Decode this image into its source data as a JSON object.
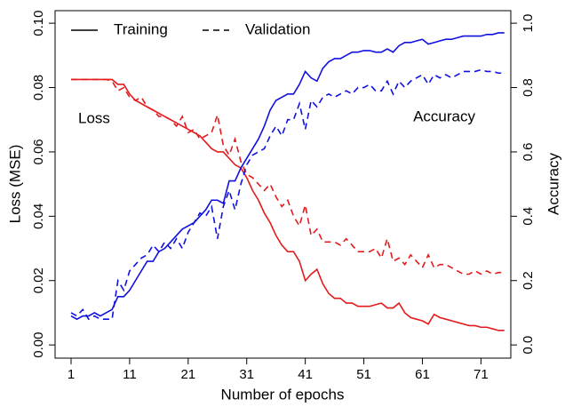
{
  "chart_data": {
    "type": "line",
    "xlabel": "Number of epochs",
    "ylabel": "Loss (MSE)",
    "y2label": "Accuracy",
    "x": [
      1,
      2,
      3,
      4,
      5,
      6,
      7,
      8,
      9,
      10,
      11,
      12,
      13,
      14,
      15,
      16,
      17,
      18,
      19,
      20,
      21,
      22,
      23,
      24,
      25,
      26,
      27,
      28,
      29,
      30,
      31,
      32,
      33,
      34,
      35,
      36,
      37,
      38,
      39,
      40,
      41,
      42,
      43,
      44,
      45,
      46,
      47,
      48,
      49,
      50,
      51,
      52,
      53,
      54,
      55,
      56,
      57,
      58,
      59,
      60,
      61,
      62,
      63,
      64,
      65,
      66,
      67,
      68,
      69,
      70,
      71,
      72,
      73,
      74,
      75
    ],
    "xlim": [
      -1.73,
      76.1
    ],
    "xticks": [
      1,
      11,
      21,
      31,
      41,
      51,
      61,
      71
    ],
    "ylim": [
      -0.0041,
      0.1039
    ],
    "yticks": [
      {
        "value": 0,
        "label": "0.00"
      },
      {
        "value": 0.02,
        "label": "0.02"
      },
      {
        "value": 0.04,
        "label": "0.04"
      },
      {
        "value": 0.06,
        "label": "0.06"
      },
      {
        "value": 0.08,
        "label": "0.08"
      },
      {
        "value": 0.1,
        "label": "0.10"
      }
    ],
    "y2lim": [
      -0.041,
      1.039
    ],
    "y2ticks": [
      {
        "value": 0,
        "label": "0.0"
      },
      0.2,
      0.4,
      0.6,
      0.8,
      {
        "value": 1,
        "label": "1.0"
      }
    ],
    "legend": [
      {
        "label": "Training",
        "dash": "solid"
      },
      {
        "label": "Validation",
        "dash": "dashed"
      }
    ],
    "annotations": [
      {
        "text": "Loss",
        "color": "#e41a1c"
      },
      {
        "text": "Accuracy",
        "color": "#1010e0"
      }
    ],
    "series": [
      {
        "color": "#e41a1c",
        "dash": "solid",
        "axis": "y",
        "values": [
          0.0825,
          0.0825,
          0.0825,
          0.0825,
          0.0825,
          0.0825,
          0.0825,
          0.0825,
          0.081,
          0.081,
          0.078,
          0.076,
          0.075,
          0.074,
          0.073,
          0.072,
          0.071,
          0.07,
          0.069,
          0.068,
          0.067,
          0.066,
          0.065,
          0.063,
          0.061,
          0.06,
          0.06,
          0.058,
          0.056,
          0.055,
          0.052,
          0.048,
          0.045,
          0.041,
          0.038,
          0.034,
          0.031,
          0.029,
          0.029,
          0.026,
          0.02,
          0.022,
          0.0235,
          0.019,
          0.016,
          0.0145,
          0.0145,
          0.013,
          0.013,
          0.012,
          0.012,
          0.012,
          0.0125,
          0.013,
          0.0115,
          0.0115,
          0.013,
          0.01,
          0.0085,
          0.008,
          0.0075,
          0.0065,
          0.0095,
          0.0085,
          0.008,
          0.0075,
          0.007,
          0.0065,
          0.006,
          0.006,
          0.0055,
          0.0055,
          0.005,
          0.0045,
          0.0045
        ]
      },
      {
        "color": "#e41a1c",
        "dash": "dashed",
        "axis": "y",
        "values": [
          0.0825,
          0.0825,
          0.0825,
          0.0825,
          0.0825,
          0.0825,
          0.0825,
          0.082,
          0.079,
          0.08,
          0.077,
          0.076,
          0.077,
          0.074,
          0.073,
          0.071,
          0.071,
          0.07,
          0.068,
          0.071,
          0.066,
          0.067,
          0.064,
          0.065,
          0.066,
          0.0715,
          0.062,
          0.059,
          0.064,
          0.057,
          0.053,
          0.052,
          0.05,
          0.048,
          0.05,
          0.046,
          0.043,
          0.045,
          0.04,
          0.037,
          0.0435,
          0.034,
          0.036,
          0.032,
          0.032,
          0.032,
          0.031,
          0.033,
          0.031,
          0.029,
          0.029,
          0.029,
          0.03,
          0.027,
          0.033,
          0.026,
          0.027,
          0.025,
          0.028,
          0.026,
          0.024,
          0.028,
          0.024,
          0.025,
          0.025,
          0.024,
          0.023,
          0.022,
          0.022,
          0.023,
          0.022,
          0.023,
          0.022,
          0.0225,
          0.0225
        ]
      },
      {
        "color": "#1010e0",
        "dash": "solid",
        "axis": "y2",
        "values": [
          0.09,
          0.08,
          0.09,
          0.09,
          0.1,
          0.09,
          0.1,
          0.11,
          0.15,
          0.15,
          0.17,
          0.2,
          0.23,
          0.26,
          0.26,
          0.29,
          0.3,
          0.32,
          0.34,
          0.36,
          0.37,
          0.38,
          0.4,
          0.42,
          0.45,
          0.45,
          0.44,
          0.51,
          0.51,
          0.55,
          0.58,
          0.61,
          0.64,
          0.68,
          0.73,
          0.76,
          0.77,
          0.78,
          0.78,
          0.81,
          0.85,
          0.83,
          0.82,
          0.86,
          0.88,
          0.89,
          0.89,
          0.9,
          0.91,
          0.91,
          0.915,
          0.915,
          0.91,
          0.91,
          0.92,
          0.91,
          0.93,
          0.94,
          0.94,
          0.945,
          0.95,
          0.935,
          0.94,
          0.945,
          0.95,
          0.95,
          0.955,
          0.96,
          0.96,
          0.96,
          0.96,
          0.965,
          0.965,
          0.97,
          0.97
        ]
      },
      {
        "color": "#1010e0",
        "dash": "dashed",
        "axis": "y2",
        "values": [
          0.1,
          0.09,
          0.11,
          0.08,
          0.09,
          0.08,
          0.08,
          0.08,
          0.2,
          0.17,
          0.23,
          0.25,
          0.27,
          0.28,
          0.31,
          0.29,
          0.32,
          0.3,
          0.33,
          0.3,
          0.35,
          0.38,
          0.41,
          0.4,
          0.43,
          0.33,
          0.43,
          0.48,
          0.42,
          0.5,
          0.56,
          0.59,
          0.6,
          0.61,
          0.65,
          0.68,
          0.65,
          0.7,
          0.7,
          0.75,
          0.67,
          0.76,
          0.74,
          0.77,
          0.78,
          0.77,
          0.78,
          0.79,
          0.78,
          0.8,
          0.8,
          0.81,
          0.79,
          0.79,
          0.82,
          0.78,
          0.82,
          0.8,
          0.82,
          0.83,
          0.84,
          0.81,
          0.84,
          0.83,
          0.84,
          0.83,
          0.84,
          0.85,
          0.85,
          0.85,
          0.855,
          0.85,
          0.85,
          0.845,
          0.845
        ]
      }
    ]
  }
}
